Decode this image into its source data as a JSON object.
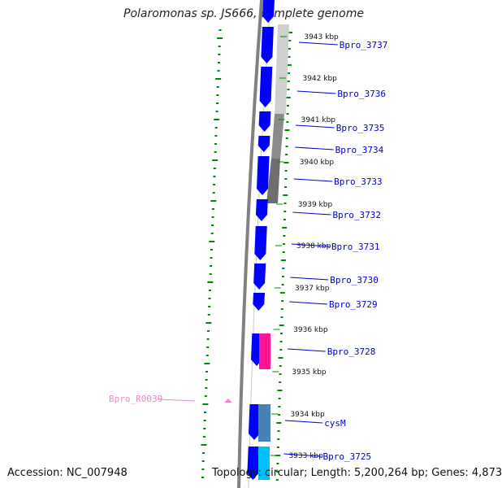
{
  "title": "Polaromonas sp. JS666, complete genome",
  "accession": "Accession: NC_007948",
  "topology": "Topology: circular",
  "length": "Length: 5,200,264 bp",
  "genes_count": "Genes: 4,873",
  "colors": {
    "forward_cds": "#0000ff",
    "backbone": "#808080",
    "gc_skew_dots": "#008800",
    "label_line": "#0000cc",
    "rna_label": "#ee88cc",
    "magenta_block": "#ff1493",
    "steelblue_block": "#4682b4",
    "cyan_block": "#00bfff"
  },
  "ticks": [
    {
      "label": "3943 kbp"
    },
    {
      "label": "3942 kbp"
    },
    {
      "label": "3941 kbp"
    },
    {
      "label": "3940 kbp"
    },
    {
      "label": "3939 kbp"
    },
    {
      "label": "3938 kbp"
    },
    {
      "label": "3937 kbp"
    },
    {
      "label": "3936 kbp"
    },
    {
      "label": "3935 kbp"
    },
    {
      "label": "3934 kbp"
    },
    {
      "label": "3933 kbp"
    }
  ],
  "gene_labels": [
    {
      "label": "Bpro_3737"
    },
    {
      "label": "Bpro_3736"
    },
    {
      "label": "Bpro_3735"
    },
    {
      "label": "Bpro_3734"
    },
    {
      "label": "Bpro_3733"
    },
    {
      "label": "Bpro_3732"
    },
    {
      "label": "Bpro_3731"
    },
    {
      "label": "Bpro_3730"
    },
    {
      "label": "Bpro_3729"
    },
    {
      "label": "Bpro_3728"
    },
    {
      "label": "cysM"
    },
    {
      "label": "Bpro_3725"
    }
  ],
  "rna_label": "Bpro_R0039"
}
